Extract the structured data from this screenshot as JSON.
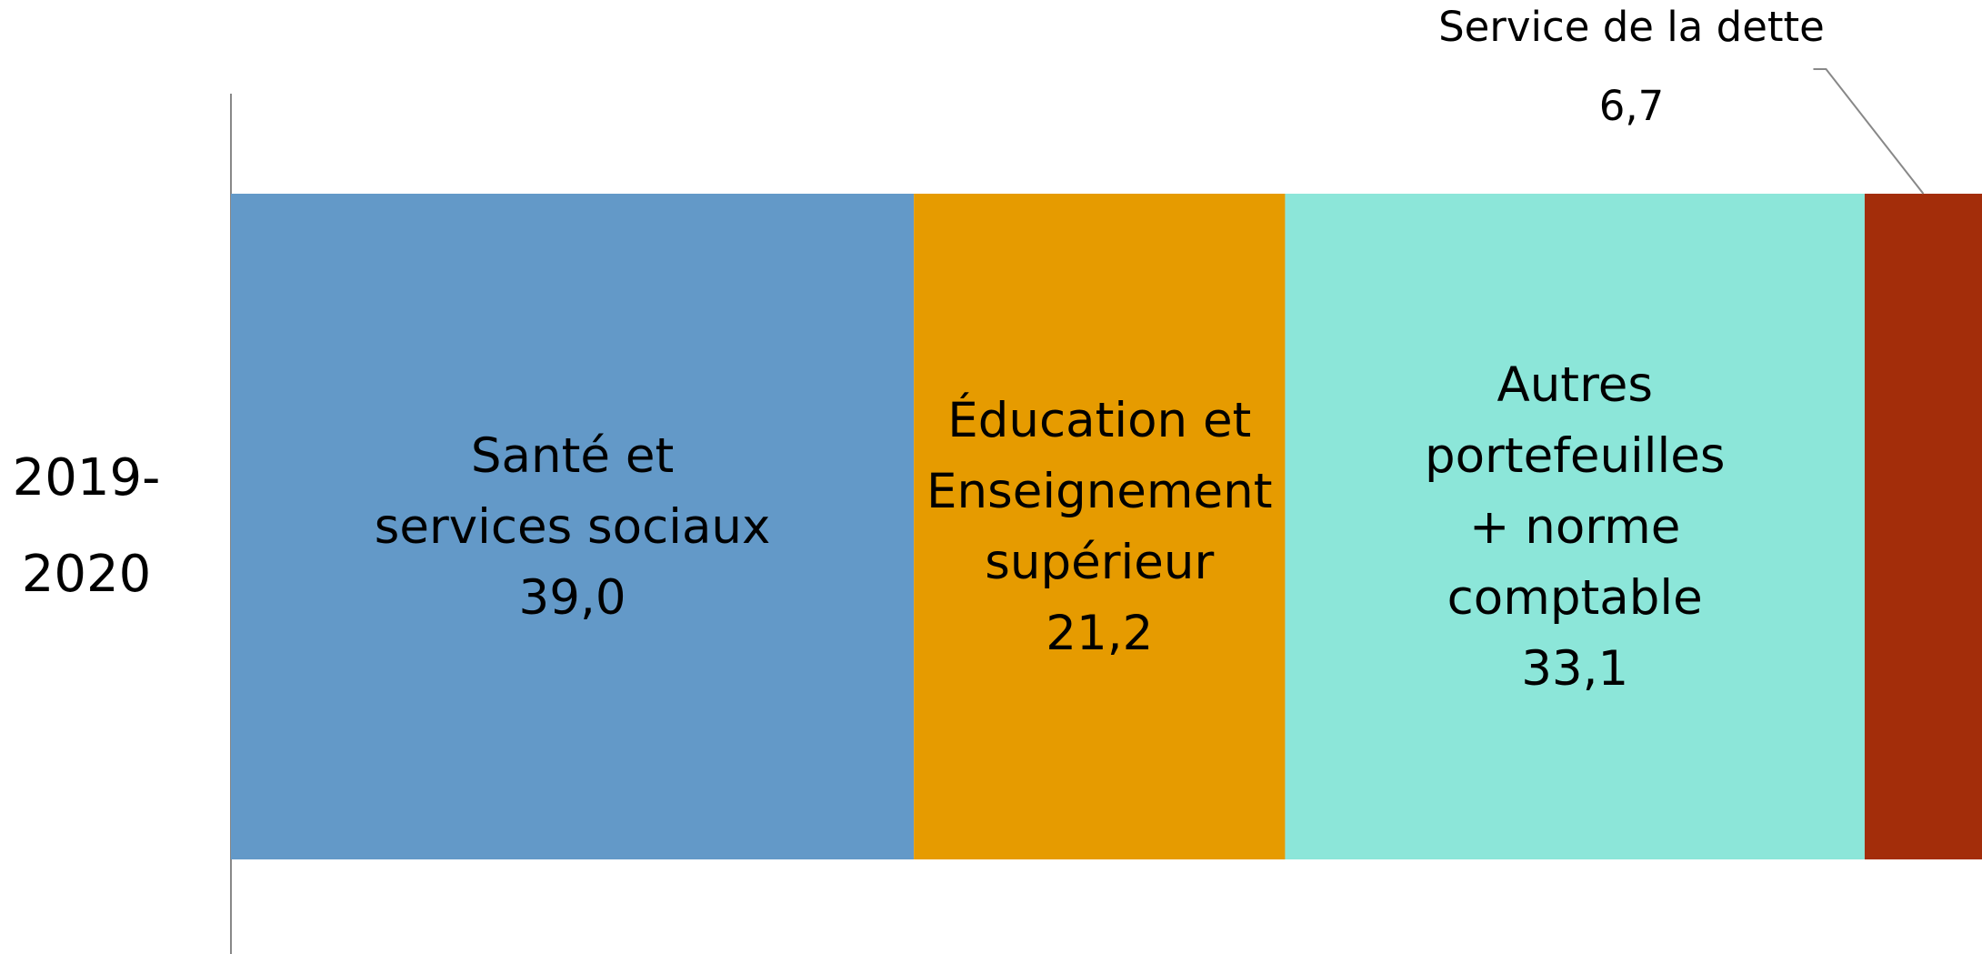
{
  "chart_data": {
    "type": "stacked-bar-horizontal",
    "categories": [
      "2019-2020"
    ],
    "xlim": [
      0,
      100
    ],
    "series": [
      {
        "name": "Santé et services sociaux",
        "color": "#6399c8",
        "values": [
          39.0
        ],
        "value_labels": [
          "39,0"
        ]
      },
      {
        "name": "Éducation et Enseignement supérieur",
        "color": "#e69b00",
        "values": [
          21.2
        ],
        "value_labels": [
          "21,2"
        ]
      },
      {
        "name": "Autres portefeuilles + norme comptable",
        "color": "#8ce6d9",
        "values": [
          33.1
        ],
        "value_labels": [
          "33,1"
        ]
      },
      {
        "name": "Service de la dette",
        "color": "#a32d0a",
        "values": [
          6.7
        ],
        "value_labels": [
          "6,7"
        ]
      }
    ]
  }
}
